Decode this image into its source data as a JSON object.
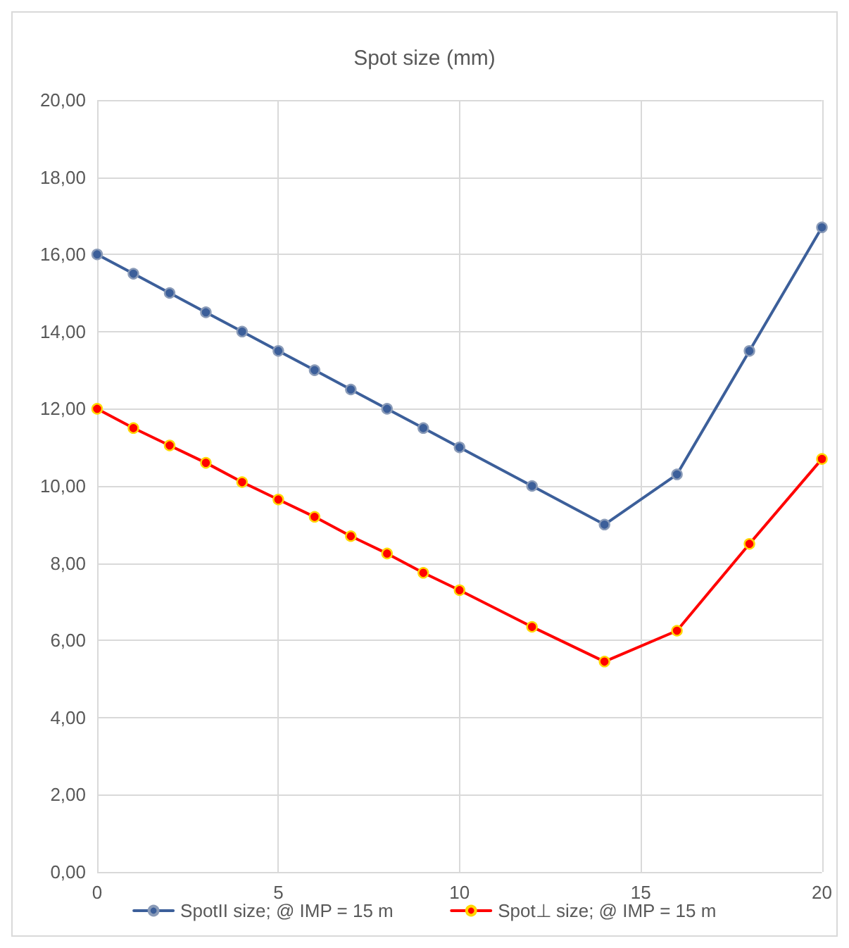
{
  "chart_data": {
    "type": "line",
    "title": "Spot size (mm)",
    "x": [
      0,
      1,
      2,
      3,
      4,
      5,
      6,
      7,
      8,
      9,
      10,
      12,
      14,
      16,
      18,
      20
    ],
    "series": [
      {
        "name": "SpotII size; @ IMP = 15 m",
        "color": "#3c5f9a",
        "values": [
          16,
          15.5,
          15,
          14.5,
          14,
          13.5,
          13,
          12.5,
          12,
          11.5,
          11,
          10,
          9,
          10.3,
          13.5,
          16.7
        ]
      },
      {
        "name": "Spot⊥ size; @ IMP = 15 m",
        "color": "#ff0000",
        "values": [
          12,
          11.5,
          11.05,
          10.6,
          10.1,
          9.65,
          9.2,
          8.7,
          8.25,
          7.75,
          7.3,
          6.35,
          5.45,
          6.25,
          8.5,
          10.7
        ]
      }
    ],
    "xlim": [
      0,
      20
    ],
    "xticks": [
      0,
      5,
      10,
      15,
      20
    ],
    "ylim": [
      0,
      20
    ],
    "yticks": [
      {
        "value": 0,
        "label": "0,00"
      },
      {
        "value": 2,
        "label": "2,00"
      },
      {
        "value": 4,
        "label": "4,00"
      },
      {
        "value": 6,
        "label": "6,00"
      },
      {
        "value": 8,
        "label": "8,00"
      },
      {
        "value": 10,
        "label": "10,00"
      },
      {
        "value": 12,
        "label": "12,00"
      },
      {
        "value": 14,
        "label": "14,00"
      },
      {
        "value": 16,
        "label": "16,00"
      },
      {
        "value": 18,
        "label": "18,00"
      },
      {
        "value": 20,
        "label": "20,00"
      }
    ],
    "grid": true,
    "legend": "bottom",
    "marker": "circle",
    "line_style": "solid"
  }
}
